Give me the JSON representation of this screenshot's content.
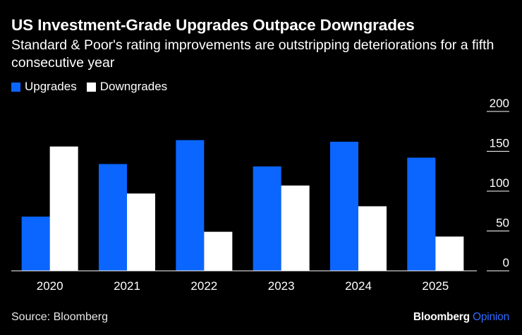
{
  "title": "US Investment-Grade Upgrades Outpace Downgrades",
  "subtitle": "Standard & Poor's rating improvements are outstripping deteriorations for a fifth consecutive year",
  "source": "Source: Bloomberg",
  "brand": {
    "name": "Bloomberg",
    "suffix": "Opinion"
  },
  "colors": {
    "upgrades": "#0a66ff",
    "downgrades": "#ffffff",
    "background": "#000000",
    "brand_accent": "#2f6bff"
  },
  "chart_data": {
    "type": "bar",
    "categories": [
      "2020",
      "2021",
      "2022",
      "2023",
      "2024",
      "2025"
    ],
    "series": [
      {
        "name": "Upgrades",
        "values": [
          68,
          134,
          164,
          131,
          162,
          142
        ]
      },
      {
        "name": "Downgrades",
        "values": [
          156,
          97,
          49,
          107,
          81,
          43
        ]
      }
    ],
    "y_ticks": [
      0,
      50,
      100,
      150,
      200
    ],
    "ylim": [
      0,
      200
    ],
    "y_axis_side": "right",
    "legend_position": "top-left",
    "grid": false,
    "xlabel": "",
    "ylabel": ""
  }
}
